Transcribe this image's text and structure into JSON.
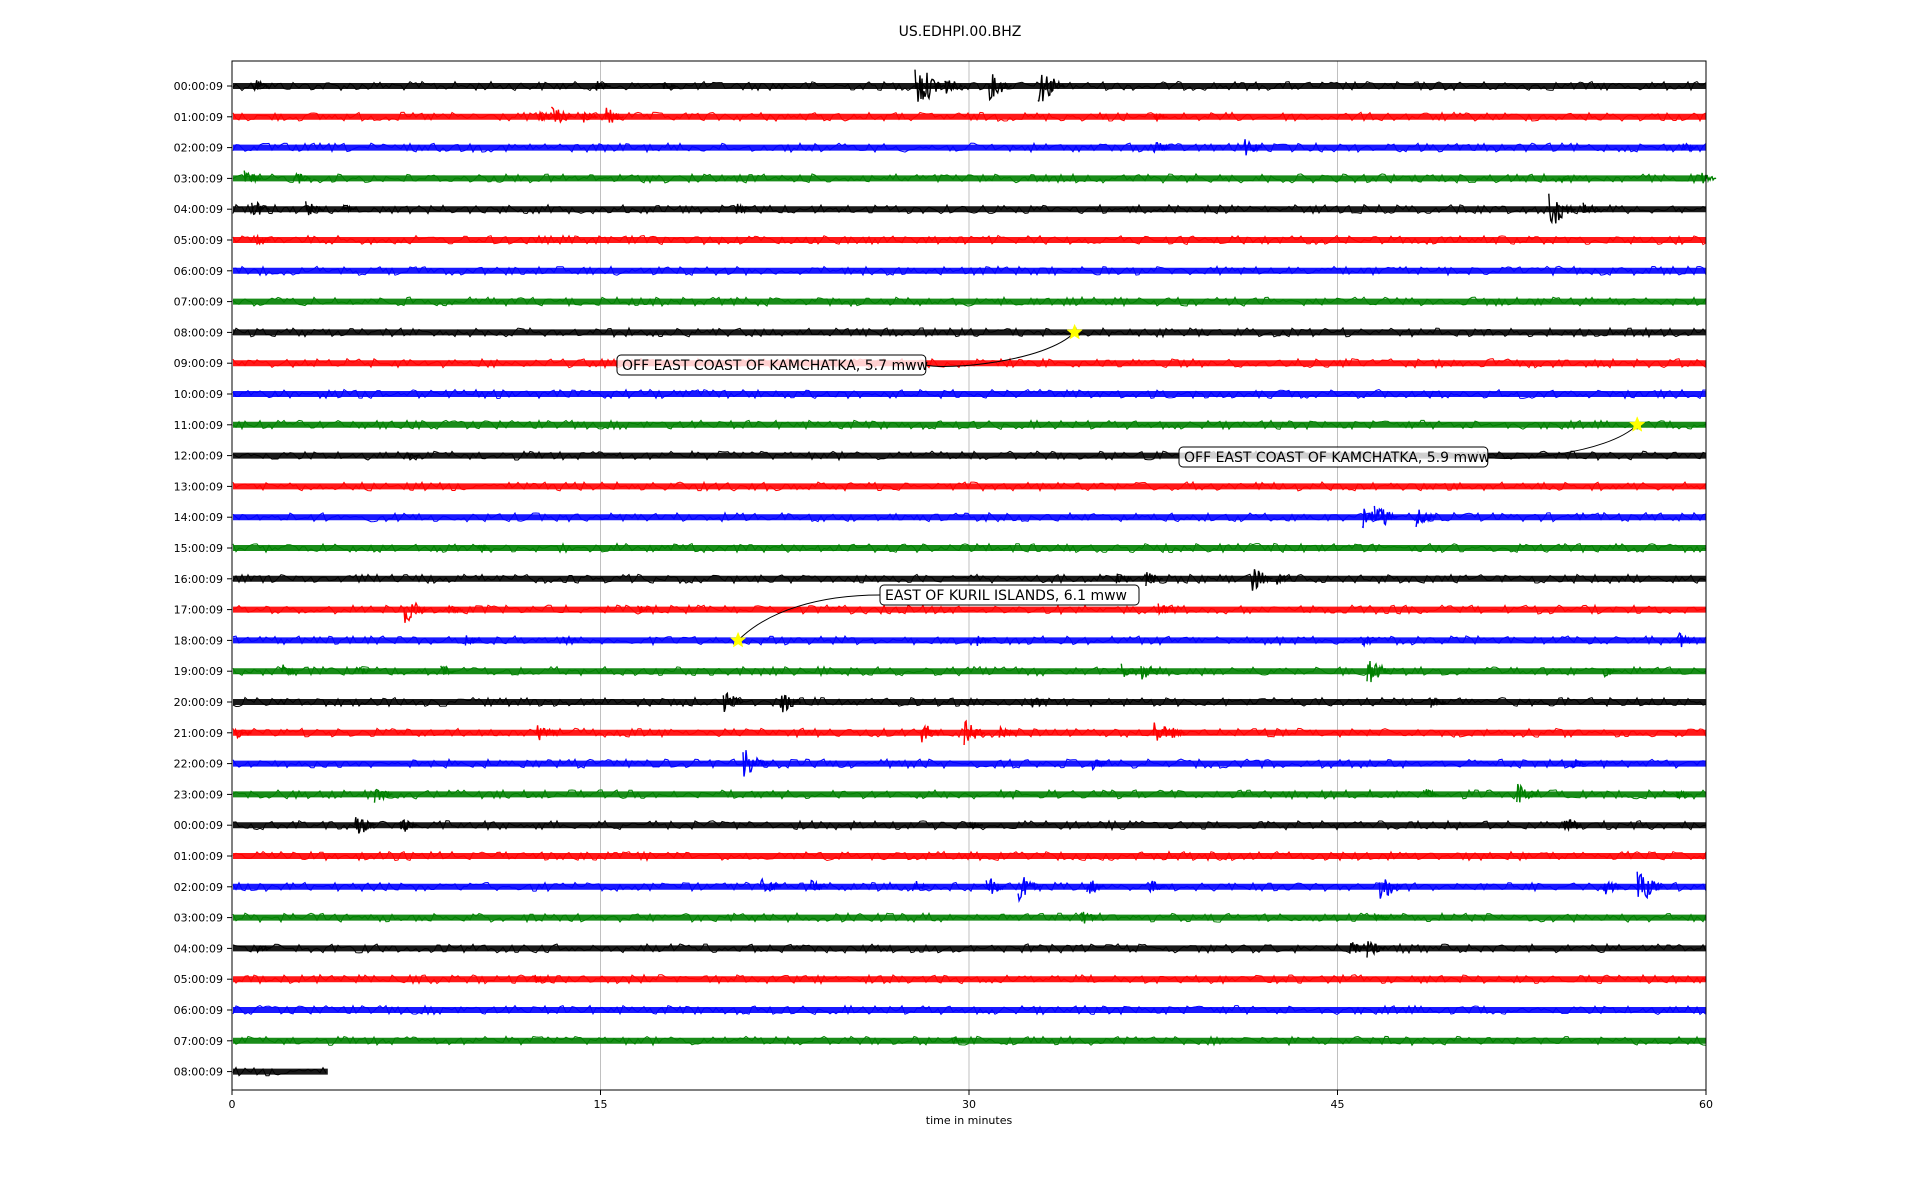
{
  "chart_data": {
    "type": "line",
    "title": "US.EDHPI.00.BHZ",
    "xlabel": "time in minutes",
    "xlim": [
      0,
      60
    ],
    "x_ticks": [
      0,
      15,
      30,
      45,
      60
    ],
    "x_tick_labels": [
      "0",
      "15",
      "30",
      "45",
      "60"
    ],
    "grid": "vertical",
    "row_colors": [
      "#000000",
      "#ff0000",
      "#0000ff",
      "#008000"
    ],
    "rows": [
      {
        "label": "00:00:09",
        "events": [
          [
            0.8,
            5
          ],
          [
            14.8,
            4
          ],
          [
            17.5,
            3
          ],
          [
            27.8,
            14
          ],
          [
            29,
            6
          ],
          [
            30.8,
            9
          ],
          [
            32.8,
            12
          ]
        ]
      },
      {
        "label": "01:00:09",
        "events": [
          [
            12.5,
            4
          ],
          [
            13,
            7
          ],
          [
            14.2,
            5
          ],
          [
            15.2,
            6
          ],
          [
            37.5,
            3
          ]
        ]
      },
      {
        "label": "02:00:09",
        "events": [
          [
            37.5,
            5
          ],
          [
            41.2,
            6
          ],
          [
            59,
            4
          ]
        ]
      },
      {
        "label": "03:00:09",
        "events": [
          [
            0.5,
            5
          ],
          [
            2.5,
            5
          ],
          [
            54,
            2
          ],
          [
            59.8,
            4
          ]
        ]
      },
      {
        "label": "04:00:09",
        "events": [
          [
            0.8,
            6
          ],
          [
            3,
            5
          ],
          [
            4.5,
            3
          ],
          [
            20.5,
            4
          ],
          [
            53.6,
            12
          ],
          [
            55,
            5
          ]
        ]
      },
      {
        "label": "05:00:09",
        "events": [
          [
            1,
            3
          ]
        ]
      },
      {
        "label": "06:00:09",
        "events": []
      },
      {
        "label": "07:00:09",
        "events": []
      },
      {
        "label": "08:00:09",
        "events": []
      },
      {
        "label": "09:00:09",
        "events": []
      },
      {
        "label": "10:00:09",
        "events": []
      },
      {
        "label": "11:00:09",
        "events": []
      },
      {
        "label": "12:00:09",
        "events": [
          [
            7,
            3
          ]
        ]
      },
      {
        "label": "13:00:09",
        "events": []
      },
      {
        "label": "14:00:09",
        "events": [
          [
            46,
            7
          ],
          [
            46.5,
            9
          ],
          [
            48.2,
            7
          ]
        ]
      },
      {
        "label": "15:00:09",
        "events": [
          [
            10,
            2
          ]
        ]
      },
      {
        "label": "16:00:09",
        "events": [
          [
            36,
            4
          ],
          [
            37.2,
            5
          ],
          [
            41.5,
            8
          ],
          [
            42.5,
            4
          ]
        ]
      },
      {
        "label": "17:00:09",
        "events": [
          [
            7,
            9
          ],
          [
            8.8,
            4
          ],
          [
            16.5,
            3
          ],
          [
            37.7,
            5
          ]
        ]
      },
      {
        "label": "18:00:09",
        "events": [
          [
            9.5,
            4
          ],
          [
            13.5,
            3
          ],
          [
            30.3,
            4
          ],
          [
            46,
            4
          ],
          [
            58.8,
            6
          ]
        ]
      },
      {
        "label": "19:00:09",
        "events": [
          [
            2,
            5
          ],
          [
            5,
            4
          ],
          [
            8.5,
            4
          ],
          [
            36.2,
            5
          ],
          [
            37,
            6
          ],
          [
            46.2,
            9
          ],
          [
            55.8,
            4
          ]
        ]
      },
      {
        "label": "20:00:09",
        "events": [
          [
            20,
            7
          ],
          [
            22.3,
            8
          ],
          [
            32.5,
            5
          ],
          [
            48.8,
            4
          ]
        ]
      },
      {
        "label": "21:00:09",
        "events": [
          [
            0.1,
            5
          ],
          [
            12.4,
            7
          ],
          [
            28,
            7
          ],
          [
            29.8,
            8
          ],
          [
            31.2,
            5
          ],
          [
            37.5,
            8
          ],
          [
            38.2,
            4
          ]
        ]
      },
      {
        "label": "22:00:09",
        "events": [
          [
            20.8,
            11
          ],
          [
            35,
            4
          ],
          [
            54.5,
            4
          ]
        ]
      },
      {
        "label": "23:00:09",
        "events": [
          [
            5.8,
            6
          ],
          [
            48.5,
            4
          ],
          [
            52.3,
            8
          ],
          [
            58.8,
            3
          ]
        ]
      },
      {
        "label": "00:00:09",
        "events": [
          [
            5,
            8
          ],
          [
            6.8,
            6
          ],
          [
            30,
            3
          ],
          [
            54.2,
            6
          ]
        ]
      },
      {
        "label": "01:00:09",
        "events": []
      },
      {
        "label": "02:00:09",
        "events": [
          [
            21.5,
            8
          ],
          [
            23.5,
            5
          ],
          [
            27.7,
            5
          ],
          [
            30.7,
            7
          ],
          [
            32,
            9
          ],
          [
            34.8,
            6
          ],
          [
            37.3,
            5
          ],
          [
            46.7,
            9
          ],
          [
            55.8,
            6
          ],
          [
            57.2,
            11
          ]
        ]
      },
      {
        "label": "03:00:09",
        "events": [
          [
            34.5,
            6
          ],
          [
            46.5,
            3
          ]
        ]
      },
      {
        "label": "04:00:09",
        "events": [
          [
            1,
            3
          ],
          [
            45.5,
            5
          ],
          [
            46.2,
            6
          ]
        ]
      },
      {
        "label": "05:00:09",
        "events": [
          [
            12.3,
            3
          ]
        ]
      },
      {
        "label": "06:00:09",
        "events": []
      },
      {
        "label": "07:00:09",
        "events": [
          [
            29.3,
            3
          ]
        ]
      },
      {
        "label": "08:00:09",
        "events": [],
        "end": 3.9
      }
    ],
    "annotations": [
      {
        "text": "OFF EAST COAST OF KAMCHATKA, 5.7 mww",
        "row": 8,
        "x": 34.3
      },
      {
        "text": "OFF EAST COAST OF KAMCHATKA, 5.9 mww",
        "row": 11,
        "x": 57.2
      },
      {
        "text": "EAST OF KURIL ISLANDS, 6.1 mww",
        "row": 18,
        "x": 20.6
      }
    ]
  }
}
